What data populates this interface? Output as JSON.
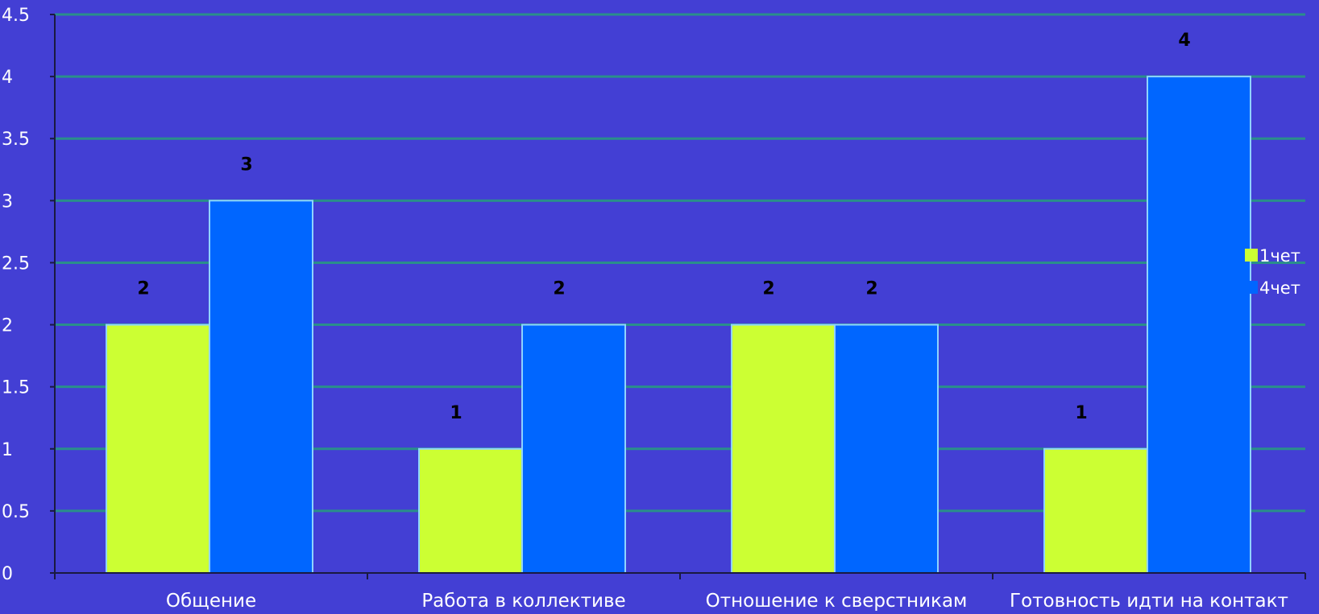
{
  "chart_data": {
    "type": "bar",
    "categories": [
      "Общение",
      "Работа в коллективе",
      "Отношение к сверстникам",
      "Готовность идти на контакт"
    ],
    "series": [
      {
        "name": "1чет",
        "values": [
          2,
          1,
          2,
          1
        ],
        "color": "#ccff33"
      },
      {
        "name": "4чет",
        "values": [
          3,
          2,
          2,
          4
        ],
        "color": "#0066ff"
      }
    ],
    "ylim": [
      0,
      4.5
    ],
    "yticks": [
      "0",
      "0.5",
      "1",
      "1.5",
      "2",
      "2.5",
      "3",
      "3.5",
      "4",
      "4.5"
    ],
    "data_labels": [
      [
        "2",
        "1",
        "2",
        "1"
      ],
      [
        "3",
        "2",
        "2",
        "4"
      ]
    ],
    "grid": true,
    "legend_position": "right",
    "colors": {
      "background": "#433fd4",
      "gridline": "#2a8f8a",
      "axis": "#1a1a40",
      "tick_label": "#ffffff",
      "data_label": "#000000",
      "bar_stroke": "#8fd3ff"
    }
  }
}
